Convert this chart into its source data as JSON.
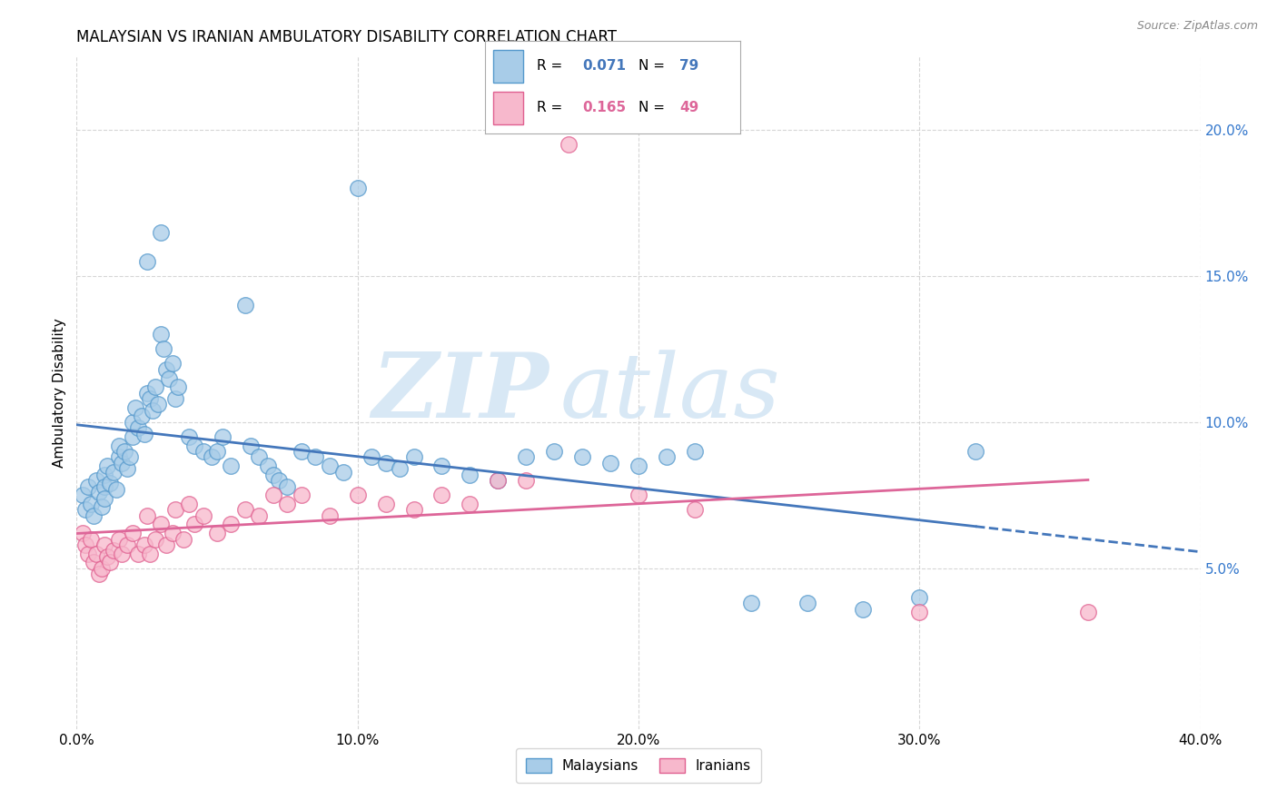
{
  "title": "MALAYSIAN VS IRANIAN AMBULATORY DISABILITY CORRELATION CHART",
  "source": "Source: ZipAtlas.com",
  "ylabel": "Ambulatory Disability",
  "xlim": [
    0.0,
    0.4
  ],
  "ylim": [
    -0.005,
    0.225
  ],
  "background_color": "#ffffff",
  "grid_color": "#cccccc",
  "malaysian_color": "#A8CCE8",
  "iranian_color": "#F7B8CC",
  "malaysian_edge_color": "#5599CC",
  "iranian_edge_color": "#E06090",
  "malaysian_line_color": "#4477BB",
  "iranian_line_color": "#DD6699",
  "R_malaysian": 0.071,
  "N_malaysian": 79,
  "R_iranian": 0.165,
  "N_iranian": 49,
  "malaysian_x": [
    0.002,
    0.003,
    0.004,
    0.005,
    0.006,
    0.007,
    0.008,
    0.009,
    0.01,
    0.01,
    0.01,
    0.011,
    0.012,
    0.013,
    0.014,
    0.015,
    0.015,
    0.016,
    0.017,
    0.018,
    0.019,
    0.02,
    0.02,
    0.021,
    0.022,
    0.023,
    0.024,
    0.025,
    0.026,
    0.027,
    0.028,
    0.029,
    0.03,
    0.031,
    0.032,
    0.033,
    0.034,
    0.035,
    0.036,
    0.04,
    0.042,
    0.045,
    0.048,
    0.05,
    0.052,
    0.055,
    0.06,
    0.062,
    0.065,
    0.068,
    0.07,
    0.072,
    0.075,
    0.08,
    0.085,
    0.09,
    0.095,
    0.1,
    0.105,
    0.11,
    0.115,
    0.12,
    0.13,
    0.14,
    0.15,
    0.16,
    0.17,
    0.18,
    0.19,
    0.2,
    0.21,
    0.22,
    0.24,
    0.26,
    0.28,
    0.3,
    0.32,
    0.025,
    0.03
  ],
  "malaysian_y": [
    0.075,
    0.07,
    0.078,
    0.072,
    0.068,
    0.08,
    0.076,
    0.071,
    0.082,
    0.078,
    0.074,
    0.085,
    0.079,
    0.083,
    0.077,
    0.088,
    0.092,
    0.086,
    0.09,
    0.084,
    0.088,
    0.1,
    0.095,
    0.105,
    0.098,
    0.102,
    0.096,
    0.11,
    0.108,
    0.104,
    0.112,
    0.106,
    0.13,
    0.125,
    0.118,
    0.115,
    0.12,
    0.108,
    0.112,
    0.095,
    0.092,
    0.09,
    0.088,
    0.09,
    0.095,
    0.085,
    0.14,
    0.092,
    0.088,
    0.085,
    0.082,
    0.08,
    0.078,
    0.09,
    0.088,
    0.085,
    0.083,
    0.18,
    0.088,
    0.086,
    0.084,
    0.088,
    0.085,
    0.082,
    0.08,
    0.088,
    0.09,
    0.088,
    0.086,
    0.085,
    0.088,
    0.09,
    0.038,
    0.038,
    0.036,
    0.04,
    0.09,
    0.155,
    0.165
  ],
  "iranian_x": [
    0.002,
    0.003,
    0.004,
    0.005,
    0.006,
    0.007,
    0.008,
    0.009,
    0.01,
    0.011,
    0.012,
    0.013,
    0.015,
    0.016,
    0.018,
    0.02,
    0.022,
    0.024,
    0.025,
    0.026,
    0.028,
    0.03,
    0.032,
    0.034,
    0.035,
    0.038,
    0.04,
    0.042,
    0.045,
    0.05,
    0.055,
    0.06,
    0.065,
    0.07,
    0.075,
    0.08,
    0.09,
    0.1,
    0.11,
    0.12,
    0.13,
    0.14,
    0.15,
    0.16,
    0.175,
    0.2,
    0.22,
    0.3,
    0.36
  ],
  "iranian_y": [
    0.062,
    0.058,
    0.055,
    0.06,
    0.052,
    0.055,
    0.048,
    0.05,
    0.058,
    0.054,
    0.052,
    0.056,
    0.06,
    0.055,
    0.058,
    0.062,
    0.055,
    0.058,
    0.068,
    0.055,
    0.06,
    0.065,
    0.058,
    0.062,
    0.07,
    0.06,
    0.072,
    0.065,
    0.068,
    0.062,
    0.065,
    0.07,
    0.068,
    0.075,
    0.072,
    0.075,
    0.068,
    0.075,
    0.072,
    0.07,
    0.075,
    0.072,
    0.08,
    0.08,
    0.195,
    0.075,
    0.07,
    0.035,
    0.035
  ],
  "legend_labels": [
    "Malaysians",
    "Iranians"
  ],
  "watermark_zip": "ZIP",
  "watermark_atlas": "atlas",
  "watermark_color": "#D8E8F5"
}
